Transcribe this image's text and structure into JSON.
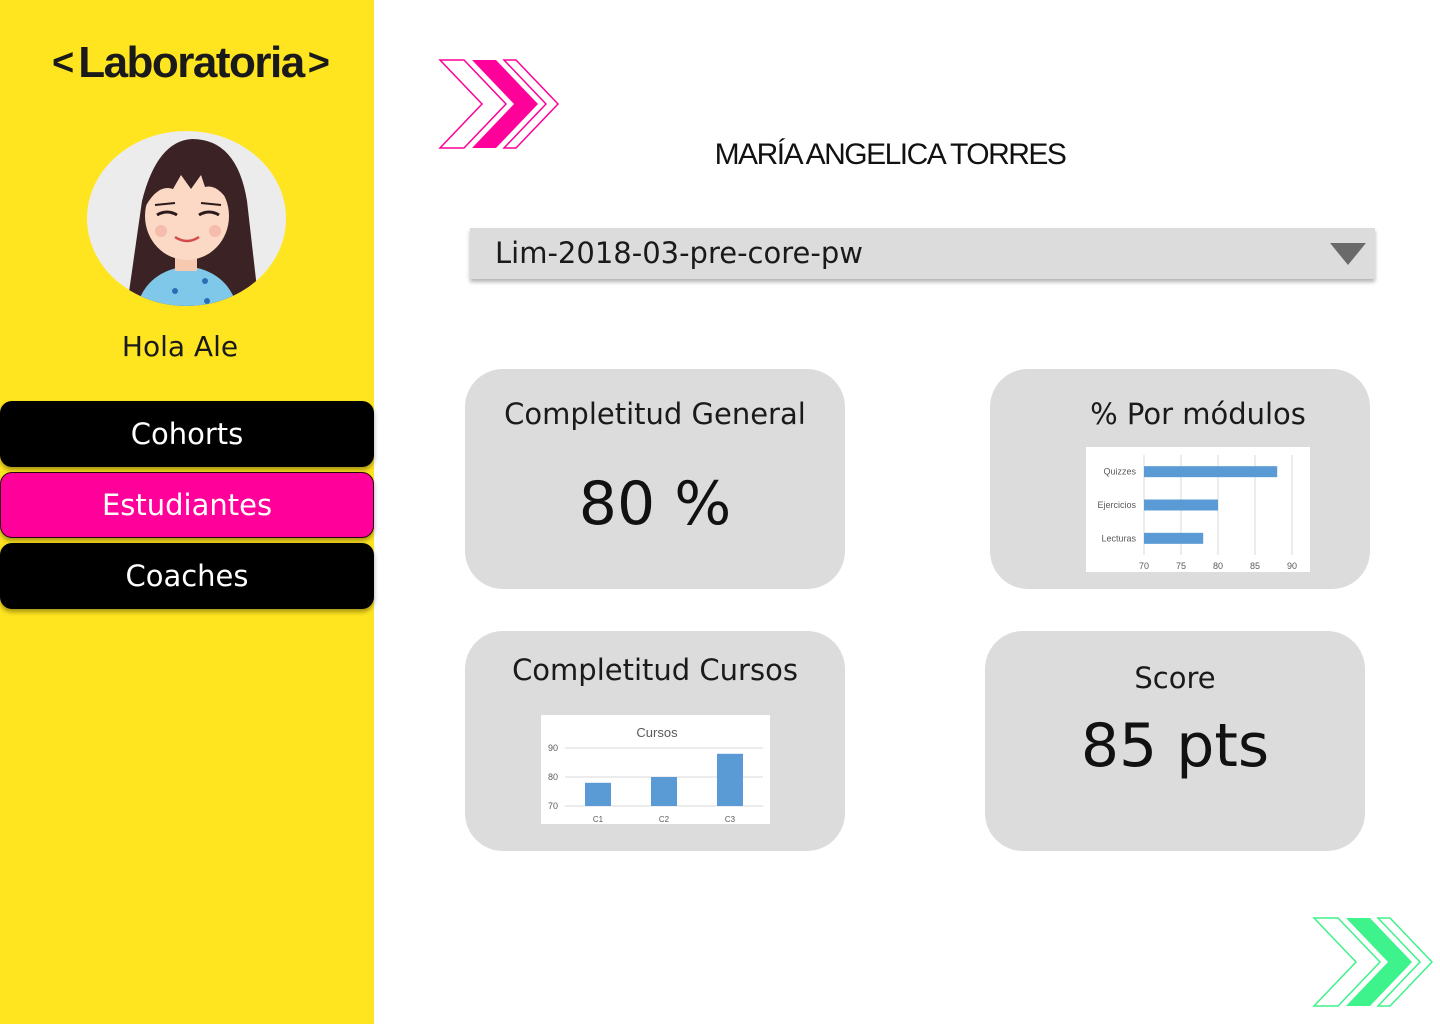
{
  "brand": {
    "name": "Laboratoria",
    "bracket_left": "<",
    "bracket_right": ">"
  },
  "sidebar": {
    "greeting": "Hola Ale",
    "nav": [
      {
        "label": "Cohorts",
        "active": false
      },
      {
        "label": "Estudiantes",
        "active": true
      },
      {
        "label": "Coaches",
        "active": false
      }
    ]
  },
  "student": {
    "name": "MARÍA ANGELICA  TORRES"
  },
  "cohort_select": {
    "value": "Lim-2018-03-pre-core-pw",
    "icon": "triangle-down-icon"
  },
  "cards": {
    "general": {
      "title": "Completitud General",
      "value": "80 %"
    },
    "modules": {
      "title": "% Por módulos"
    },
    "courses": {
      "title": "Completitud Cursos"
    },
    "score": {
      "title": "Score",
      "value": "85 pts"
    }
  },
  "colors": {
    "sidebar_bg": "#ffe51f",
    "active_nav": "#ff009a",
    "card_bg": "#dcdcdc",
    "bar": "#5b9bd5",
    "deco_pink": "#ff009a",
    "deco_green": "#3ef28c"
  },
  "chart_data": [
    {
      "type": "bar",
      "orientation": "horizontal",
      "categories": [
        "Quizzes",
        "Ejercicios",
        "Lecturas"
      ],
      "values": [
        88,
        80,
        78
      ],
      "xlim": [
        70,
        90
      ],
      "xticks": [
        "70",
        "75",
        "80",
        "85",
        "90"
      ],
      "grid": true
    },
    {
      "type": "bar",
      "title": "Cursos",
      "categories": [
        "C1",
        "C2",
        "C3"
      ],
      "values": [
        78,
        80,
        88
      ],
      "ylim": [
        70,
        90
      ],
      "yticks": [
        "70",
        "80",
        "90"
      ],
      "grid": true
    }
  ]
}
